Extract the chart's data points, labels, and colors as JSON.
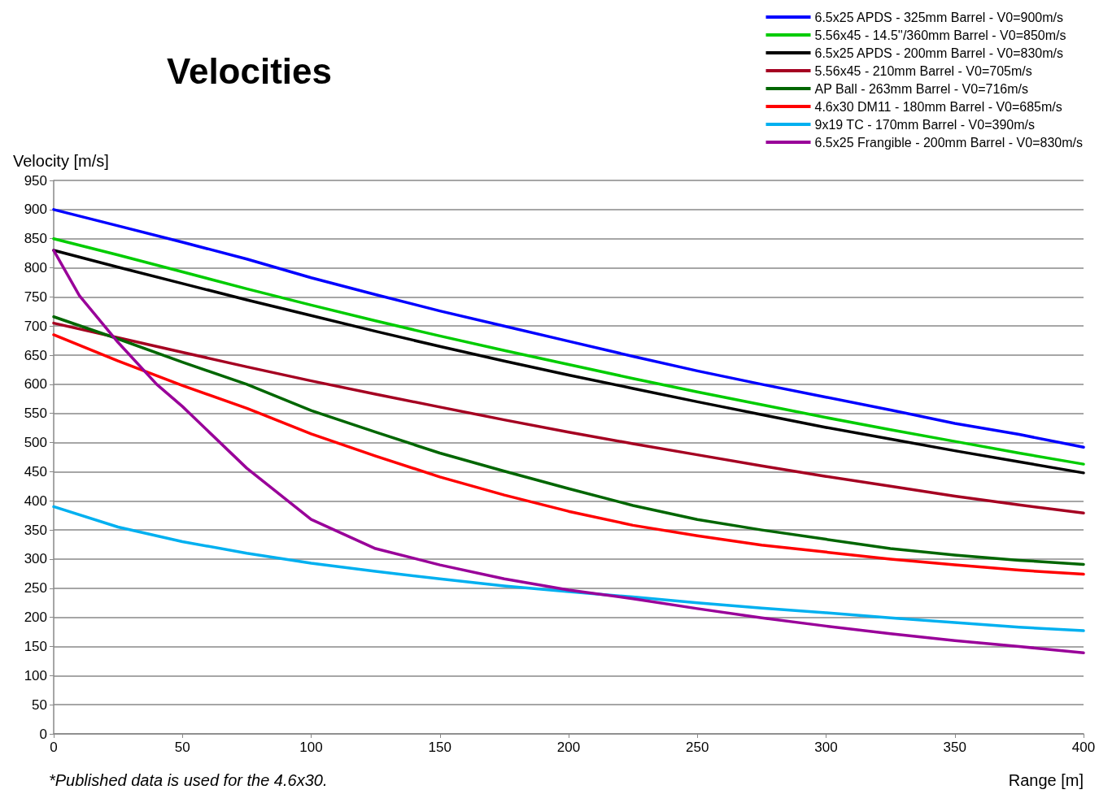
{
  "chart_data": {
    "type": "line",
    "title": "Velocities",
    "xlabel": "Range [m]",
    "ylabel": "Velocity [m/s]",
    "annotations": [
      "*Published data is used for the 4.6x30."
    ],
    "x": [
      0,
      25,
      50,
      75,
      100,
      125,
      150,
      175,
      200,
      225,
      250,
      275,
      300,
      325,
      350,
      375,
      400
    ],
    "series": [
      {
        "name": "6.5x25 APDS - 325mm Barrel - V0=900m/s",
        "color": "#0000ff",
        "values": [
          900,
          872,
          844,
          815,
          783,
          754,
          726,
          700,
          674,
          648,
          623,
          600,
          578,
          556,
          533,
          514,
          492
        ]
      },
      {
        "name": "5.56x45 - 14.5''/360mm Barrel - V0=850m/s",
        "color": "#00cc00",
        "values": [
          850,
          822,
          793,
          764,
          736,
          709,
          683,
          658,
          634,
          610,
          587,
          565,
          543,
          522,
          502,
          482,
          463
        ]
      },
      {
        "name": "6.5x25 APDS - 200mm Barrel - V0=830m/s",
        "color": "#000000",
        "values": [
          830,
          801,
          773,
          745,
          718,
          691,
          665,
          640,
          616,
          593,
          570,
          548,
          526,
          506,
          486,
          467,
          448
        ]
      },
      {
        "name": "5.56x45 - 210mm Barrel - V0=705m/s",
        "color": "#a50021",
        "values": [
          705,
          680,
          655,
          630,
          606,
          583,
          561,
          539,
          518,
          498,
          479,
          460,
          442,
          425,
          408,
          393,
          379
        ]
      },
      {
        "name": "AP Ball - 263mm Barrel - V0=716m/s",
        "color": "#006600",
        "values": [
          716,
          678,
          638,
          600,
          555,
          518,
          482,
          451,
          421,
          392,
          368,
          350,
          334,
          318,
          307,
          298,
          291
        ]
      },
      {
        "name": "4.6x30 DM11 - 180mm Barrel - V0=685m/s",
        "color": "#ff0000",
        "values": [
          685,
          640,
          598,
          559,
          515,
          477,
          441,
          410,
          382,
          358,
          340,
          324,
          312,
          300,
          290,
          281,
          274
        ]
      },
      {
        "name": "9x19 TC - 170mm Barrel - V0=390m/s",
        "color": "#00b0f0",
        "values": [
          390,
          355,
          330,
          310,
          293,
          279,
          266,
          254,
          244,
          235,
          225,
          216,
          208,
          199,
          191,
          183,
          177
        ]
      },
      {
        "name": "6.5x25 Frangible - 200mm Barrel - V0=830m/s",
        "color": "#990099",
        "x": [
          0,
          10,
          25,
          40,
          50,
          75,
          100,
          125,
          150,
          175,
          200,
          225,
          250,
          275,
          300,
          325,
          350,
          375,
          400
        ],
        "values": [
          830,
          752,
          672,
          600,
          562,
          456,
          368,
          318,
          290,
          266,
          247,
          232,
          215,
          199,
          185,
          172,
          160,
          150,
          139
        ]
      }
    ],
    "xlim": [
      0,
      400
    ],
    "xticks": [
      0,
      50,
      100,
      150,
      200,
      250,
      300,
      350,
      400
    ],
    "ylim": [
      0,
      950
    ],
    "yticks": [
      0,
      50,
      100,
      150,
      200,
      250,
      300,
      350,
      400,
      450,
      500,
      550,
      600,
      650,
      700,
      750,
      800,
      850,
      900,
      950
    ],
    "grid": "y",
    "legend": "top right",
    "marker": "none",
    "line_style": "solid"
  }
}
